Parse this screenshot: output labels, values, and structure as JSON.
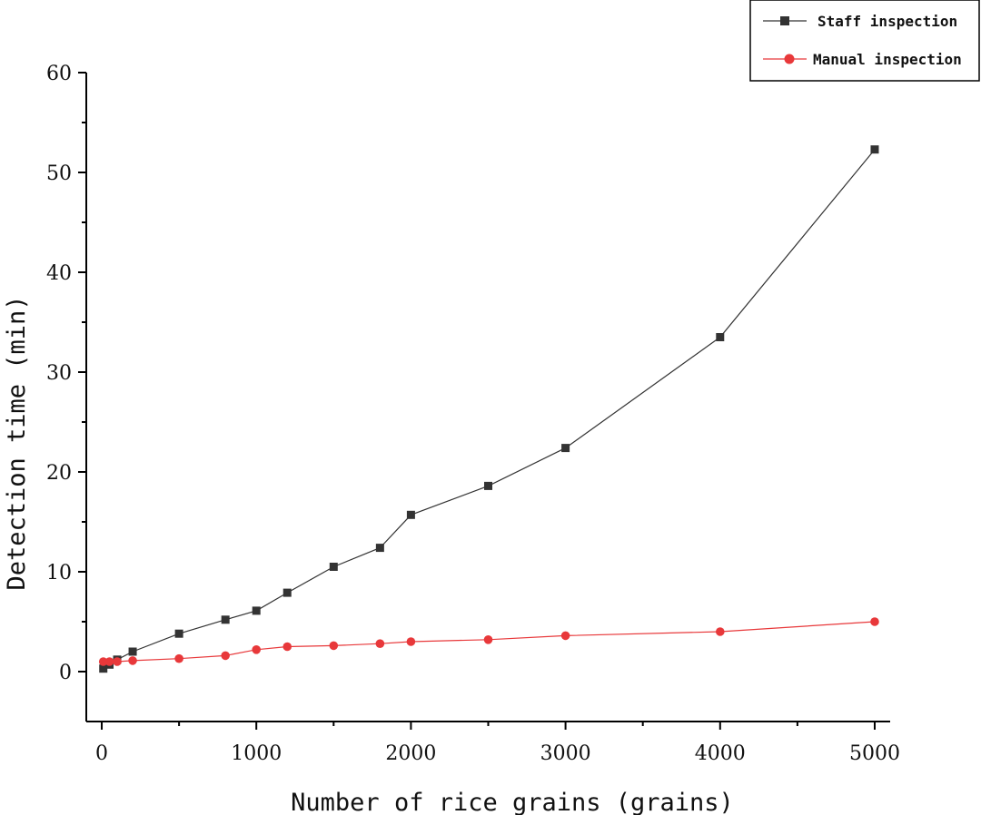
{
  "chart_data": {
    "type": "line",
    "xlabel": "Number of rice grains (grains)",
    "ylabel": "Detection time (min)",
    "xlim": [
      -100,
      5100
    ],
    "ylim": [
      -5,
      60
    ],
    "xticks": [
      0,
      1000,
      2000,
      3000,
      4000,
      5000
    ],
    "yticks": [
      0,
      10,
      20,
      30,
      40,
      50,
      60
    ],
    "legend_position": "top-right",
    "grid": false,
    "series": [
      {
        "name": "Staff inspection",
        "color": "#333333",
        "marker": "square",
        "x": [
          10,
          50,
          100,
          200,
          500,
          800,
          1000,
          1200,
          1500,
          1800,
          2000,
          2500,
          3000,
          4000,
          5000
        ],
        "y": [
          0.3,
          0.7,
          1.2,
          2.0,
          3.8,
          5.2,
          6.1,
          7.9,
          10.5,
          12.4,
          15.7,
          18.6,
          22.4,
          33.5,
          52.3
        ]
      },
      {
        "name": "Manual inspection",
        "color": "#e8383a",
        "marker": "circle",
        "x": [
          10,
          50,
          100,
          200,
          500,
          800,
          1000,
          1200,
          1500,
          1800,
          2000,
          2500,
          3000,
          4000,
          5000
        ],
        "y": [
          1.0,
          1.0,
          1.0,
          1.1,
          1.3,
          1.6,
          2.2,
          2.5,
          2.6,
          2.8,
          3.0,
          3.2,
          3.6,
          4.0,
          5.0
        ]
      }
    ]
  }
}
